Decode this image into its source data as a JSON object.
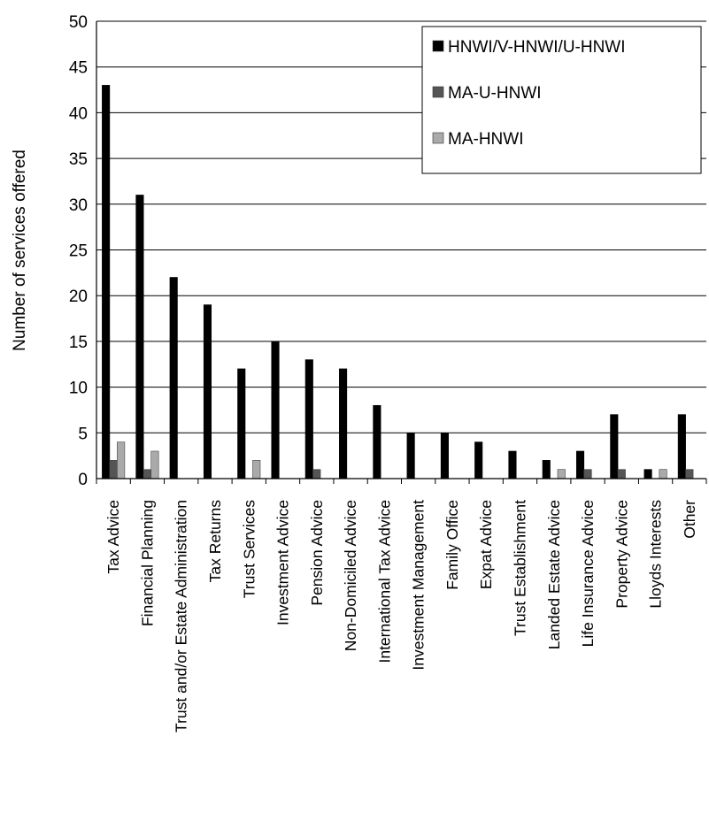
{
  "chart_data": {
    "type": "bar",
    "ylabel": "Number of services offered",
    "xlabel": "",
    "ylim": [
      0,
      50
    ],
    "yticks": [
      0,
      5,
      10,
      15,
      20,
      25,
      30,
      35,
      40,
      45,
      50
    ],
    "grid": "horizontal",
    "legend": "top-right",
    "categories": [
      "Tax Advice",
      "Financial Planning",
      "Trust and/or Estate Administration",
      "Tax Returns",
      "Trust Services",
      "Investment Advice",
      "Pension Advice",
      "Non-Domiciled Advice",
      "International Tax Advice",
      "Investment Management",
      "Family Office",
      "Expat Advice",
      "Trust Establishment",
      "Landed Estate Advice",
      "Life Insurance Advice",
      "Property Advice",
      "Lloyds Interests",
      "Other"
    ],
    "series": [
      {
        "name": "HNWI/V-HNWI/U-HNWI",
        "color": "#000000",
        "values": [
          43,
          31,
          22,
          19,
          12,
          15,
          13,
          12,
          8,
          5,
          5,
          4,
          3,
          2,
          3,
          7,
          1,
          7
        ]
      },
      {
        "name": "MA-U-HNWI",
        "color": "#555555",
        "values": [
          2,
          1,
          0,
          0,
          0,
          0,
          1,
          0,
          0,
          0,
          0,
          0,
          0,
          0,
          1,
          1,
          0,
          1
        ]
      },
      {
        "name": "MA-HNWI",
        "color": "#aaaaaa",
        "values": [
          4,
          3,
          0,
          0,
          2,
          0,
          0,
          0,
          0,
          0,
          0,
          0,
          0,
          1,
          0,
          0,
          1,
          0
        ]
      }
    ]
  }
}
